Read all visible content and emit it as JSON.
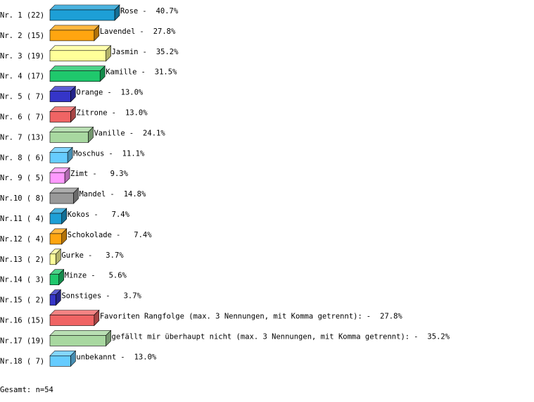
{
  "chart_data": {
    "type": "bar",
    "orientation": "horizontal",
    "separator": "-",
    "row_labels": [
      "Nr. 1 (22)",
      "Nr. 2 (15)",
      "Nr. 3 (19)",
      "Nr. 4 (17)",
      "Nr. 5 ( 7)",
      "Nr. 6 ( 7)",
      "Nr. 7 (13)",
      "Nr. 8 ( 6)",
      "Nr. 9 ( 5)",
      "Nr.10 ( 8)",
      "Nr.11 ( 4)",
      "Nr.12 ( 4)",
      "Nr.13 ( 2)",
      "Nr.14 ( 3)",
      "Nr.15 ( 2)",
      "Nr.16 (15)",
      "Nr.17 (19)",
      "Nr.18 ( 7)"
    ],
    "categories": [
      "Rose",
      "Lavendel",
      "Jasmin",
      "Kamille",
      "Orange",
      "Zitrone",
      "Vanille",
      "Moschus",
      "Zimt",
      "Mandel",
      "Kokos",
      "Schokolade",
      "Gurke",
      "Minze",
      "Sonstiges",
      "Favoriten Rangfolge (max. 3 Nennungen, mit Komma getrennt):",
      "gefällt mir überhaupt nicht (max. 3 Nennungen, mit Komma getrennt):",
      "unbekannt"
    ],
    "values": [
      40.7,
      27.8,
      35.2,
      31.5,
      13.0,
      13.0,
      24.1,
      11.1,
      9.3,
      14.8,
      7.4,
      7.4,
      3.7,
      5.6,
      3.7,
      27.8,
      35.2,
      13.0
    ],
    "value_labels": [
      "40.7%",
      "27.8%",
      "35.2%",
      "31.5%",
      "13.0%",
      "13.0%",
      "24.1%",
      "11.1%",
      "9.3%",
      "14.8%",
      "7.4%",
      "7.4%",
      "3.7%",
      "5.6%",
      "3.7%",
      "27.8%",
      "35.2%",
      "13.0%"
    ],
    "colors": [
      "#1d9fd6",
      "#ffa510",
      "#ffff99",
      "#1fc86c",
      "#3535c8",
      "#f06464",
      "#a8d8a0",
      "#66ccff",
      "#ff99ff",
      "#999999",
      "#1d9fd6",
      "#ffa510",
      "#ffff99",
      "#1fc86c",
      "#3535c8",
      "#f06464",
      "#a8d8a0",
      "#66ccff"
    ],
    "footer": "Gesamt: n=54"
  }
}
